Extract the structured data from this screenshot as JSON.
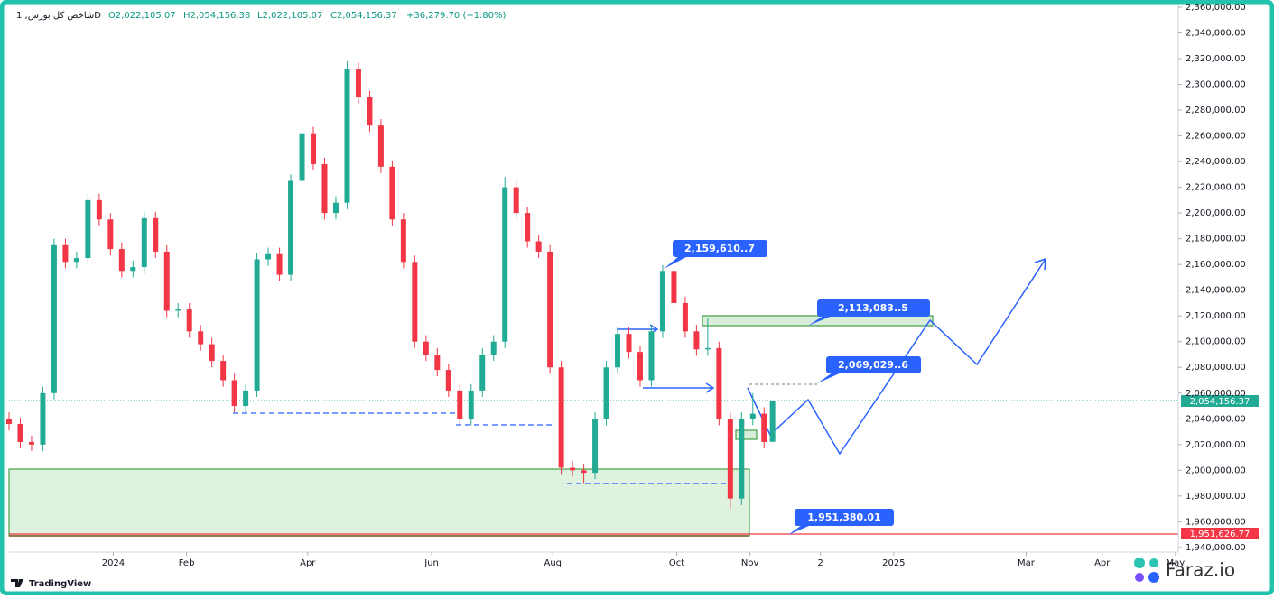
{
  "chart_data": {
    "type": "candlestick",
    "symbol": "شاخص کل بورس, 1D",
    "ohlc_legend": [
      "O2,022,105.07",
      "H2,054,156.38",
      "L2,022,105.07",
      "C2,054,156.37",
      "+36,279.70 (+1.80%)"
    ],
    "up_color": "#22ab94",
    "down_color": "#f23645",
    "x": [
      0,
      4,
      8,
      12,
      16,
      20,
      24,
      28,
      32,
      36,
      40,
      44,
      48,
      52,
      56,
      60,
      64,
      68,
      72,
      76,
      80,
      84,
      88,
      92,
      96,
      100,
      104,
      108,
      112,
      116,
      120,
      124,
      128,
      132,
      136,
      140,
      144,
      148,
      152,
      156,
      160,
      164,
      168,
      172,
      176,
      180,
      184,
      188,
      192,
      196,
      200,
      204,
      208,
      212,
      216,
      220,
      224,
      228,
      232,
      236,
      240,
      244,
      248,
      252,
      256,
      260,
      264,
      268,
      271
    ],
    "open": [
      2040000,
      2036000,
      2022000,
      2020000,
      2060000,
      2175000,
      2162000,
      2165000,
      2210000,
      2195000,
      2172000,
      2155000,
      2158000,
      2196000,
      2170000,
      2124000,
      2125000,
      2108000,
      2098000,
      2085000,
      2070000,
      2050000,
      2062000,
      2164000,
      2168000,
      2152000,
      2225000,
      2262000,
      2238000,
      2200000,
      2208000,
      2312000,
      2290000,
      2268000,
      2236000,
      2195000,
      2162000,
      2100000,
      2090000,
      2078000,
      2062000,
      2040000,
      2062000,
      2090000,
      2100000,
      2220000,
      2200000,
      2178000,
      2170000,
      2080000,
      2002000,
      2000000,
      1998000,
      2040000,
      2080000,
      2106000,
      2092000,
      2070000,
      2108000,
      2155000,
      2130000,
      2108000,
      2094000,
      2095000,
      2040000,
      1978000,
      2040000,
      2044000,
      2022105.07
    ],
    "high": [
      2045000,
      2041000,
      2027000,
      2065000,
      2180000,
      2180000,
      2170000,
      2215000,
      2215000,
      2200000,
      2177000,
      2163000,
      2201000,
      2201000,
      2175000,
      2130000,
      2130000,
      2113000,
      2103000,
      2090000,
      2075000,
      2067000,
      2169000,
      2173000,
      2173000,
      2230000,
      2267000,
      2267000,
      2243000,
      2213000,
      2318000,
      2317000,
      2295000,
      2273000,
      2241000,
      2200000,
      2167000,
      2105000,
      2095000,
      2083000,
      2067000,
      2067000,
      2095000,
      2105000,
      2228000,
      2225000,
      2205000,
      2183000,
      2175000,
      2085000,
      2007000,
      2005000,
      2045000,
      2085000,
      2111000,
      2111000,
      2097000,
      2113000,
      2159610.7,
      2160000,
      2135000,
      2113000,
      2118000,
      2100000,
      2045000,
      2045000,
      2060000,
      2049000,
      2054156.38
    ],
    "low": [
      2031000,
      2017000,
      2015000,
      2015000,
      2055000,
      2157000,
      2157000,
      2160000,
      2190000,
      2167000,
      2150000,
      2150000,
      2153000,
      2165000,
      2119000,
      2119000,
      2103000,
      2093000,
      2080000,
      2065000,
      2045000,
      2045000,
      2057000,
      2159000,
      2147000,
      2147000,
      2220000,
      2233000,
      2195000,
      2195000,
      2203000,
      2285000,
      2263000,
      2231000,
      2190000,
      2157000,
      2095000,
      2085000,
      2073000,
      2057000,
      2035000,
      2035000,
      2057000,
      2085000,
      2095000,
      2195000,
      2173000,
      2165000,
      2075000,
      1997000,
      1995000,
      1990000,
      1993000,
      2035000,
      2075000,
      2087000,
      2065000,
      2065000,
      2103000,
      2125000,
      2103000,
      2089000,
      2089000,
      2035000,
      1970000,
      1973000,
      2035000,
      2017000,
      2022105.07
    ],
    "close": [
      2036000,
      2022000,
      2020000,
      2060000,
      2175000,
      2162000,
      2165000,
      2210000,
      2195000,
      2172000,
      2155000,
      2158000,
      2196000,
      2170000,
      2124000,
      2125000,
      2108000,
      2098000,
      2085000,
      2070000,
      2050000,
      2062000,
      2164000,
      2168000,
      2152000,
      2225000,
      2262000,
      2238000,
      2200000,
      2208000,
      2312000,
      2290000,
      2268000,
      2236000,
      2195000,
      2162000,
      2100000,
      2090000,
      2078000,
      2062000,
      2040000,
      2062000,
      2090000,
      2100000,
      2220000,
      2200000,
      2178000,
      2170000,
      2080000,
      2002000,
      2000000,
      1998000,
      2040000,
      2080000,
      2106000,
      2092000,
      2070000,
      2108000,
      2155000,
      2130000,
      2108000,
      2094000,
      2095000,
      2040000,
      1978000,
      2040000,
      2044000,
      2022000,
      2054156.37
    ],
    "xlim": [
      0,
      415
    ],
    "xticks": [
      {
        "value": 37,
        "label": "2024"
      },
      {
        "value": 63,
        "label": "Feb"
      },
      {
        "value": 106,
        "label": "Apr"
      },
      {
        "value": 150,
        "label": "Jun"
      },
      {
        "value": 193,
        "label": "Aug"
      },
      {
        "value": 237,
        "label": "Oct"
      },
      {
        "value": 263,
        "label": "Nov"
      },
      {
        "value": 288,
        "label": "2"
      },
      {
        "value": 314,
        "label": "2025"
      },
      {
        "value": 361,
        "label": "Mar"
      },
      {
        "value": 388,
        "label": "Apr"
      },
      {
        "value": 414,
        "label": "May"
      }
    ],
    "ylim": [
      1936400,
      2362100
    ],
    "yticks": [
      {
        "value": 1940000,
        "label": "1,940,000.00"
      },
      {
        "value": 1960000,
        "label": "1,960,000.00"
      },
      {
        "value": 1980000,
        "label": "1,980,000.00"
      },
      {
        "value": 2000000,
        "label": "2,000,000.00"
      },
      {
        "value": 2020000,
        "label": "2,020,000.00"
      },
      {
        "value": 2040000,
        "label": "2,040,000.00"
      },
      {
        "value": 2060000,
        "label": "2,060,000.00"
      },
      {
        "value": 2080000,
        "label": "2,080,000.00"
      },
      {
        "value": 2100000,
        "label": "2,100,000.00"
      },
      {
        "value": 2120000,
        "label": "2,120,000.00"
      },
      {
        "value": 2140000,
        "label": "2,140,000.00"
      },
      {
        "value": 2160000,
        "label": "2,160,000.00"
      },
      {
        "value": 2180000,
        "label": "2,180,000.00"
      },
      {
        "value": 2200000,
        "label": "2,200,000.00"
      },
      {
        "value": 2220000,
        "label": "2,220,000.00"
      },
      {
        "value": 2240000,
        "label": "2,240,000.00"
      },
      {
        "value": 2260000,
        "label": "2,260,000.00"
      },
      {
        "value": 2280000,
        "label": "2,280,000.00"
      },
      {
        "value": 2300000,
        "label": "2,300,000.00"
      },
      {
        "value": 2320000,
        "label": "2,320,000.00"
      },
      {
        "value": 2340000,
        "label": "2,340,000.00"
      },
      {
        "value": 2360000,
        "label": "2,360,000.00"
      }
    ],
    "grid": false,
    "annotations": [
      "2,159,610..7",
      "2,113,083..5",
      "2,069,029..6",
      "1,951,380.01"
    ],
    "price_badges": [
      "2,054,156.37",
      "1,951,626.77"
    ]
  },
  "branding": {
    "tradingview": "TradingView",
    "faraz": "Faraz.io"
  }
}
